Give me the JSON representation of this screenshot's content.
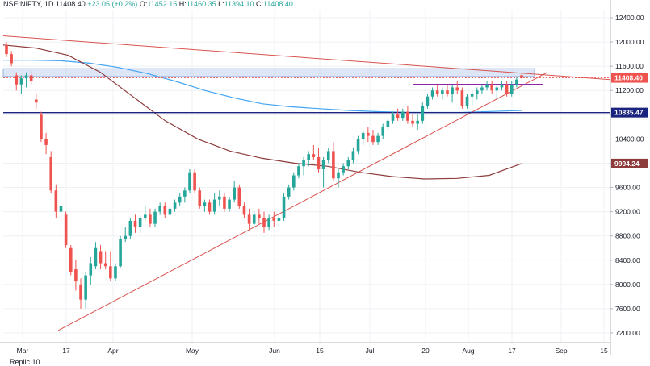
{
  "header": {
    "symbol": "NSE:NIFTY, 1D",
    "last": "11408.40",
    "change": "+23.05 (+0.2%)",
    "o_label": "O:",
    "o_value": "11452.15",
    "h_label": "H:",
    "h_value": "11460.35",
    "l_label": "L:",
    "l_value": "11394.10",
    "c_label": "C:",
    "c_value": "11408.40"
  },
  "footer": {
    "text": "Replic 10"
  },
  "colors": {
    "up": "#26a69a",
    "down": "#ef5350",
    "sma_blue": "#42a5f5",
    "sma_brown": "#8d3b3b",
    "trend_red": "#d9534f",
    "support_blue": "#1a237e",
    "resistance_purple": "#8e24aa",
    "zone_fill": "#c5d5f0",
    "grid": "#eef0f4"
  },
  "chart_data": {
    "type": "candlestick",
    "title": "",
    "ylim": [
      7100,
      12550
    ],
    "y_ticks": [
      "12400.00",
      "12000.00",
      "11600.00",
      "11200.00",
      "10800.00",
      "10400.00",
      "10000.00",
      "9600.00",
      "9200.00",
      "8800.00",
      "8400.00",
      "8000.00",
      "7600.00",
      "7200.00"
    ],
    "x_tick_labels": [
      "Mar",
      "17",
      "Apr",
      "May",
      "Jun",
      "15",
      "Jul",
      "20",
      "Aug",
      "17",
      "Sep",
      "15"
    ],
    "price_tags": [
      {
        "label": "11408.40",
        "value": 11408.4,
        "color": "#ef5350"
      },
      {
        "label": "10835.47",
        "value": 10835.47,
        "color": "#1a237e"
      },
      {
        "label": "9994.24",
        "value": 9994.24,
        "color": "#8d3b3b"
      }
    ],
    "candles_ohlc": [
      [
        11950,
        12000,
        11750,
        11800
      ],
      [
        11800,
        11850,
        11600,
        11650
      ],
      [
        11450,
        11500,
        11200,
        11300
      ],
      [
        11300,
        11450,
        11150,
        11400
      ],
      [
        11400,
        11500,
        11250,
        11450
      ],
      [
        11450,
        11520,
        11300,
        11350
      ],
      [
        11050,
        11150,
        10900,
        11000
      ],
      [
        10800,
        10850,
        10350,
        10400
      ],
      [
        10400,
        10500,
        10150,
        10300
      ],
      [
        10100,
        10200,
        9500,
        9550
      ],
      [
        9550,
        9650,
        9100,
        9200
      ],
      [
        9200,
        9400,
        8700,
        9300
      ],
      [
        9150,
        9200,
        8600,
        8650
      ],
      [
        8600,
        8650,
        8150,
        8200
      ],
      [
        8250,
        8400,
        7900,
        8050
      ],
      [
        8000,
        8100,
        7600,
        7750
      ],
      [
        7750,
        8200,
        7600,
        8150
      ],
      [
        8150,
        8450,
        8000,
        8350
      ],
      [
        8300,
        8700,
        8250,
        8600
      ],
      [
        8550,
        8650,
        8250,
        8350
      ],
      [
        8350,
        8550,
        8250,
        8300
      ],
      [
        8300,
        8550,
        8050,
        8100
      ],
      [
        8100,
        8350,
        8050,
        8300
      ],
      [
        8300,
        8800,
        8280,
        8750
      ],
      [
        8750,
        8950,
        8700,
        8800
      ],
      [
        8800,
        9100,
        8750,
        9050
      ],
      [
        9050,
        9150,
        8850,
        8950
      ],
      [
        8950,
        9150,
        8850,
        9100
      ],
      [
        9100,
        9300,
        9050,
        9150
      ],
      [
        9150,
        9250,
        8950,
        9000
      ],
      [
        9000,
        9250,
        8950,
        9200
      ],
      [
        9200,
        9350,
        9150,
        9300
      ],
      [
        9300,
        9350,
        9100,
        9150
      ],
      [
        9150,
        9300,
        9100,
        9250
      ],
      [
        9250,
        9400,
        9200,
        9350
      ],
      [
        9350,
        9500,
        9300,
        9450
      ],
      [
        9450,
        9600,
        9350,
        9550
      ],
      [
        9550,
        9900,
        9500,
        9850
      ],
      [
        9850,
        9900,
        9500,
        9550
      ],
      [
        9550,
        9600,
        9250,
        9300
      ],
      [
        9300,
        9400,
        9200,
        9350
      ],
      [
        9350,
        9400,
        9150,
        9200
      ],
      [
        9200,
        9500,
        9150,
        9400
      ],
      [
        9400,
        9550,
        9300,
        9450
      ],
      [
        9450,
        9500,
        9200,
        9250
      ],
      [
        9250,
        9450,
        9200,
        9400
      ],
      [
        9400,
        9700,
        9350,
        9600
      ],
      [
        9600,
        9650,
        9250,
        9300
      ],
      [
        9300,
        9350,
        9100,
        9150
      ],
      [
        9150,
        9250,
        8900,
        9000
      ],
      [
        9000,
        9200,
        8950,
        9150
      ],
      [
        9150,
        9250,
        9000,
        9100
      ],
      [
        9100,
        9200,
        8850,
        8950
      ],
      [
        8950,
        9150,
        8900,
        9100
      ],
      [
        9100,
        9200,
        8950,
        9050
      ],
      [
        9050,
        9150,
        8950,
        9100
      ],
      [
        9100,
        9500,
        9050,
        9450
      ],
      [
        9450,
        9650,
        9400,
        9600
      ],
      [
        9600,
        9850,
        9550,
        9800
      ],
      [
        9800,
        10000,
        9750,
        9950
      ],
      [
        9950,
        10100,
        9800,
        10050
      ],
      [
        10050,
        10200,
        9950,
        10150
      ],
      [
        10150,
        10300,
        10050,
        10100
      ],
      [
        10100,
        10250,
        9850,
        9900
      ],
      [
        9900,
        10100,
        9600,
        10050
      ],
      [
        10050,
        10250,
        10000,
        10200
      ],
      [
        10200,
        10350,
        9700,
        9750
      ],
      [
        9750,
        9900,
        9600,
        9850
      ],
      [
        9850,
        10000,
        9800,
        9950
      ],
      [
        9950,
        10100,
        9900,
        10050
      ],
      [
        10050,
        10250,
        10000,
        10200
      ],
      [
        10200,
        10450,
        10150,
        10400
      ],
      [
        10400,
        10550,
        10300,
        10500
      ],
      [
        10500,
        10600,
        10350,
        10450
      ],
      [
        10450,
        10550,
        10300,
        10350
      ],
      [
        10350,
        10500,
        10300,
        10450
      ],
      [
        10450,
        10650,
        10400,
        10600
      ],
      [
        10600,
        10750,
        10550,
        10700
      ],
      [
        10700,
        10850,
        10650,
        10800
      ],
      [
        10800,
        10900,
        10700,
        10750
      ],
      [
        10750,
        10900,
        10700,
        10850
      ],
      [
        10850,
        10950,
        10650,
        10700
      ],
      [
        10700,
        10800,
        10600,
        10650
      ],
      [
        10650,
        10800,
        10550,
        10700
      ],
      [
        10700,
        11000,
        10650,
        10950
      ],
      [
        10950,
        11150,
        10900,
        11100
      ],
      [
        11100,
        11250,
        11050,
        11200
      ],
      [
        11200,
        11300,
        11100,
        11150
      ],
      [
        11150,
        11250,
        11050,
        11200
      ],
      [
        11200,
        11300,
        11100,
        11150
      ],
      [
        11150,
        11300,
        11000,
        11250
      ],
      [
        11250,
        11350,
        11150,
        11200
      ],
      [
        11200,
        11250,
        10900,
        10950
      ],
      [
        10950,
        11150,
        10900,
        11100
      ],
      [
        11100,
        11200,
        10950,
        11150
      ],
      [
        11150,
        11250,
        11050,
        11200
      ],
      [
        11200,
        11300,
        11150,
        11250
      ],
      [
        11250,
        11350,
        11200,
        11300
      ],
      [
        11300,
        11350,
        11150,
        11200
      ],
      [
        11200,
        11300,
        11050,
        11250
      ],
      [
        11250,
        11350,
        11200,
        11300
      ],
      [
        11300,
        11350,
        11100,
        11150
      ],
      [
        11150,
        11350,
        11100,
        11300
      ],
      [
        11300,
        11420,
        11250,
        11380
      ],
      [
        11452,
        11460,
        11394,
        11408
      ]
    ],
    "sma_blue": [
      11700,
      11700,
      11690,
      11650,
      11580,
      11480,
      11350,
      11200,
      11080,
      10980,
      10930,
      10900,
      10870,
      10850,
      10840,
      10838,
      10840,
      10855,
      10870
    ],
    "sma_brown": [
      11950,
      11900,
      11780,
      11500,
      11100,
      10700,
      10400,
      10200,
      10080,
      10000,
      9950,
      9850,
      9780,
      9740,
      9750,
      9800,
      9994
    ],
    "support": 10835.47,
    "resistance_level": 11300,
    "current": 11408.4,
    "zone": [
      11430,
      11560
    ]
  }
}
